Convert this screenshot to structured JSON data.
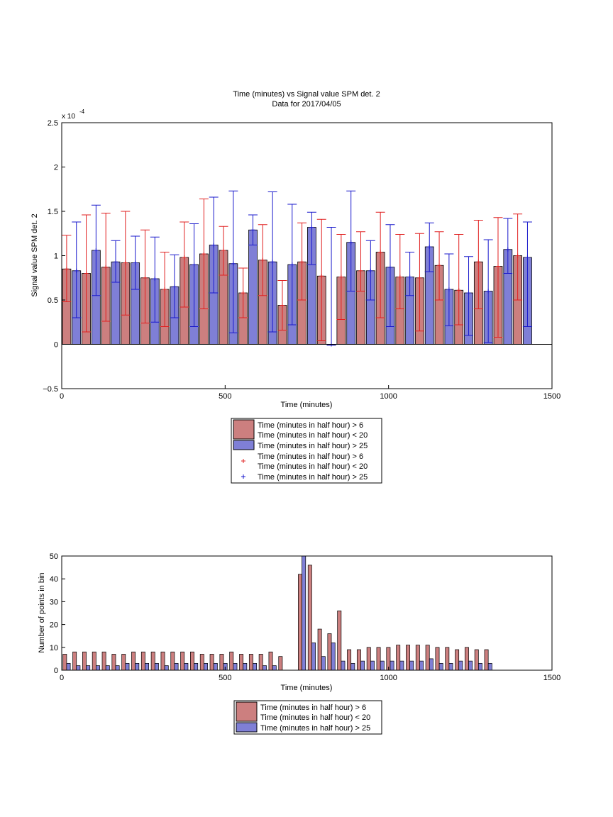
{
  "colors": {
    "red_bar": "#cc7f7f",
    "blue_bar": "#7f7fd6",
    "red_err": "#e02020",
    "blue_err": "#1a1acc",
    "axis": "#000000"
  },
  "chart_data": [
    {
      "type": "bar",
      "title": "Time (minutes) vs Signal value SPM det. 2",
      "subtitle": "Data for 2017/04/05",
      "xlabel": "Time (minutes)",
      "ylabel": "Signal value SPM det. 2",
      "exponent_label": "x 10",
      "exponent_power": "-4",
      "xlim": [
        0,
        1500
      ],
      "ylim": [
        -0.5,
        2.5
      ],
      "xticks": [
        0,
        500,
        1000,
        1500
      ],
      "yticks": [
        -0.5,
        0,
        0.5,
        1,
        1.5,
        2,
        2.5
      ],
      "ytick_labels": [
        "−0.5",
        "0",
        "0.5",
        "1",
        "1.5",
        "2",
        "2.5"
      ],
      "legend_position": "below",
      "legend": [
        {
          "kind": "patch",
          "series": "red",
          "lines": [
            "Time (minutes in half hour) > 6",
            "Time (minutes in half hour) < 20"
          ]
        },
        {
          "kind": "patch",
          "series": "blue",
          "lines": [
            "Time (minutes in half hour) > 25"
          ]
        },
        {
          "kind": "plus",
          "series": "red",
          "lines": [
            "Time (minutes in half hour) > 6",
            "Time (minutes in half hour) < 20"
          ]
        },
        {
          "kind": "plus",
          "series": "blue",
          "lines": [
            "Time (minutes in half hour) > 25"
          ]
        }
      ],
      "x_red": [
        15,
        75,
        135,
        195,
        255,
        315,
        375,
        435,
        495,
        555,
        615,
        675,
        735,
        795,
        855,
        915,
        975,
        1035,
        1095,
        1155,
        1215,
        1275,
        1335,
        1395
      ],
      "red": {
        "values": [
          0.85,
          0.8,
          0.87,
          0.92,
          0.75,
          0.62,
          0.98,
          1.02,
          1.06,
          0.58,
          0.95,
          0.44,
          0.93,
          0.77,
          0.76,
          0.83,
          1.04,
          0.76,
          0.75,
          0.89,
          0.61,
          0.93,
          0.88,
          1.0
        ],
        "err_low": [
          0.48,
          0.14,
          0.26,
          0.33,
          0.24,
          0.2,
          0.42,
          0.4,
          0.78,
          0.3,
          0.55,
          0.16,
          0.5,
          0.04,
          0.28,
          0.6,
          0.3,
          0.4,
          0.15,
          0.5,
          0.22,
          0.4,
          0.08,
          0.5
        ],
        "err_high": [
          1.23,
          1.46,
          1.48,
          1.5,
          1.29,
          1.04,
          1.38,
          1.64,
          1.33,
          0.86,
          1.35,
          0.72,
          1.37,
          1.41,
          1.24,
          1.27,
          1.49,
          1.24,
          1.25,
          1.27,
          1.24,
          1.4,
          1.43,
          1.47
        ]
      },
      "x_blue": [
        45,
        105,
        165,
        225,
        285,
        345,
        405,
        465,
        525,
        585,
        645,
        705,
        765,
        825,
        885,
        945,
        1005,
        1065,
        1125,
        1185,
        1245,
        1305,
        1365,
        1425
      ],
      "blue": {
        "values": [
          0.83,
          1.06,
          0.93,
          0.92,
          0.74,
          0.65,
          0.9,
          1.12,
          0.91,
          1.29,
          0.93,
          0.9,
          1.32,
          0.0,
          1.15,
          0.83,
          0.87,
          0.76,
          1.1,
          0.62,
          0.58,
          0.6,
          1.07,
          0.98
        ],
        "err_low": [
          0.3,
          0.55,
          0.7,
          0.62,
          0.25,
          0.3,
          0.2,
          0.58,
          0.13,
          1.12,
          0.14,
          0.22,
          0.9,
          -0.01,
          0.6,
          0.5,
          0.2,
          0.55,
          0.82,
          0.21,
          0.1,
          0.02,
          0.8,
          0.2
        ],
        "err_high": [
          1.38,
          1.57,
          1.17,
          1.22,
          1.21,
          1.01,
          1.36,
          1.66,
          1.73,
          1.46,
          1.72,
          1.58,
          1.49,
          1.32,
          1.73,
          1.17,
          1.35,
          1.04,
          1.37,
          1.02,
          0.99,
          1.18,
          1.42,
          1.38
        ]
      }
    },
    {
      "type": "bar",
      "title": "",
      "xlabel": "Time (minutes)",
      "ylabel": "Number of points in bin",
      "xlim": [
        0,
        1500
      ],
      "ylim": [
        0,
        50
      ],
      "xticks": [
        0,
        500,
        1000,
        1500
      ],
      "yticks": [
        0,
        10,
        20,
        30,
        40,
        50
      ],
      "legend_position": "below",
      "legend": [
        {
          "kind": "patch",
          "series": "red",
          "lines": [
            "Time (minutes in half hour) > 6",
            "Time (minutes in half hour) < 20"
          ]
        },
        {
          "kind": "patch",
          "series": "blue",
          "lines": [
            "Time (minutes in half hour) > 25"
          ]
        }
      ],
      "x": [
        15,
        45,
        75,
        105,
        135,
        165,
        195,
        225,
        255,
        285,
        315,
        345,
        375,
        405,
        435,
        465,
        495,
        525,
        555,
        585,
        615,
        645,
        675,
        705,
        735,
        765,
        795,
        825,
        855,
        885,
        915,
        945,
        975,
        1005,
        1035,
        1065,
        1095,
        1125,
        1155,
        1185,
        1215,
        1245,
        1275,
        1305,
        1335,
        1365,
        1395,
        1425
      ],
      "red": [
        7,
        8,
        8,
        8,
        8,
        7,
        7,
        8,
        8,
        8,
        8,
        8,
        8,
        8,
        7,
        7,
        7,
        8,
        7,
        7,
        7,
        8,
        6,
        0,
        42,
        46,
        18,
        16,
        26,
        9,
        9,
        10,
        10,
        10,
        11,
        11,
        11,
        11,
        10,
        10,
        9,
        10,
        9,
        9,
        0,
        0,
        0,
        0
      ],
      "blue": [
        3,
        2,
        2,
        2,
        2,
        2,
        3,
        3,
        3,
        3,
        2,
        3,
        3,
        3,
        3,
        3,
        3,
        3,
        3,
        3,
        2,
        2,
        0,
        0,
        50,
        12,
        6,
        12,
        4,
        3,
        4,
        4,
        4,
        4,
        4,
        4,
        4,
        5,
        3,
        3,
        4,
        4,
        3,
        3,
        0,
        0,
        0,
        0
      ]
    }
  ]
}
